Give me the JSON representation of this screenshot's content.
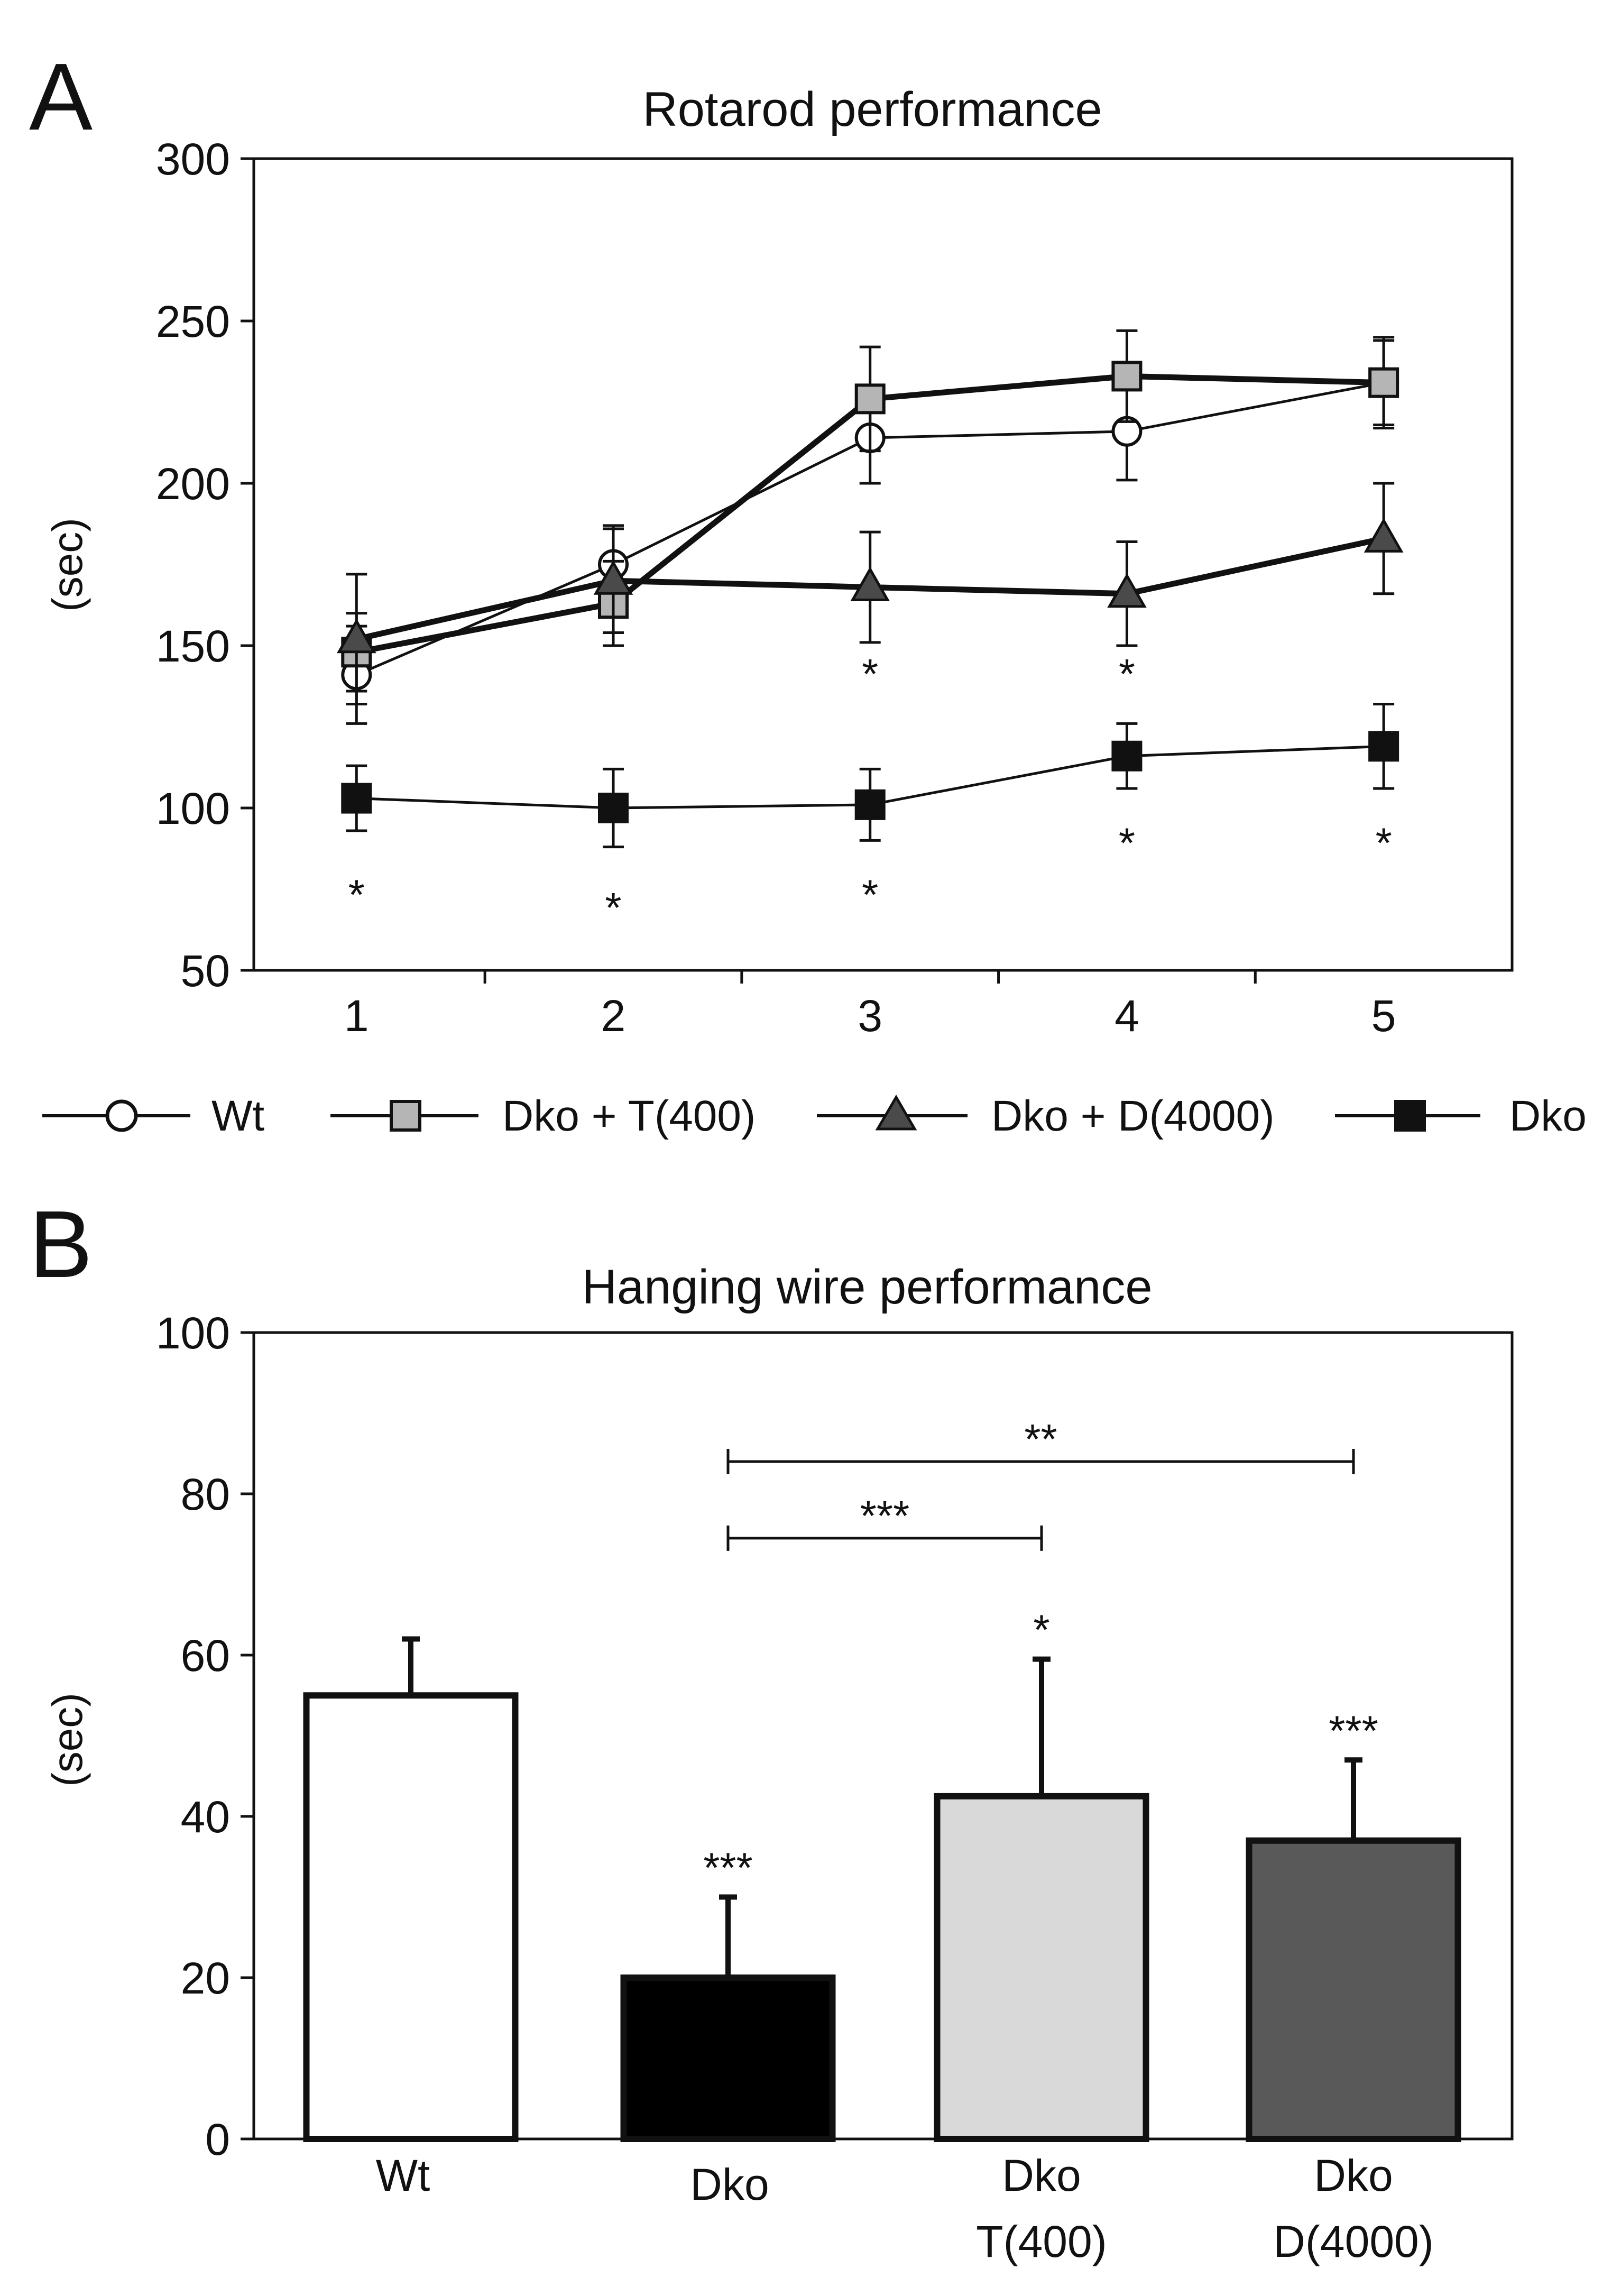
{
  "chart_data": [
    {
      "panel": "A",
      "type": "line",
      "title": "Rotarod performance",
      "xlabel": "",
      "ylabel": "(sec)",
      "xlim": [
        0.6,
        5.5
      ],
      "ylim": [
        50,
        300
      ],
      "x_ticks": [
        "1",
        "2",
        "3",
        "4",
        "5"
      ],
      "y_ticks": [
        "50",
        "100",
        "150",
        "200",
        "250",
        "300"
      ],
      "x": [
        1,
        2,
        3,
        4,
        5
      ],
      "series": [
        {
          "name": "Wt",
          "marker": "circle",
          "fill": "#ffffff",
          "line_weight": "thin",
          "values": [
            141,
            175,
            214,
            216,
            231
          ],
          "error": [
            15,
            12,
            14,
            15,
            14
          ]
        },
        {
          "name": "Dko + T(400)",
          "marker": "square",
          "fill": "#b5b5b5",
          "line_weight": "thick",
          "values": [
            148,
            163,
            226,
            233,
            231
          ],
          "error": [
            12,
            13,
            16,
            14,
            13
          ]
        },
        {
          "name": "Dko + D(4000)",
          "marker": "triangle",
          "fill": "#4a4a4a",
          "line_weight": "thick",
          "values": [
            152,
            170,
            168,
            166,
            183
          ],
          "error": [
            20,
            16,
            17,
            16,
            17
          ]
        },
        {
          "name": "Dko",
          "marker": "square",
          "fill": "#111111",
          "line_weight": "thin",
          "values": [
            103,
            100,
            101,
            116,
            119
          ],
          "error": [
            10,
            12,
            11,
            10,
            13
          ]
        }
      ],
      "annotations": [
        {
          "series": "Dko + D(4000)",
          "x": 3,
          "y": 143,
          "text": "*"
        },
        {
          "series": "Dko + D(4000)",
          "x": 4,
          "y": 143,
          "text": "*"
        },
        {
          "series": "Dko",
          "x": 1,
          "y": 75,
          "text": "*"
        },
        {
          "series": "Dko",
          "x": 2,
          "y": 71,
          "text": "*"
        },
        {
          "series": "Dko",
          "x": 3,
          "y": 75,
          "text": "*"
        },
        {
          "series": "Dko",
          "x": 4,
          "y": 91,
          "text": "*"
        },
        {
          "series": "Dko",
          "x": 5,
          "y": 91,
          "text": "*"
        }
      ]
    },
    {
      "panel": "B",
      "type": "bar",
      "title": "Hanging wire performance",
      "xlabel": "",
      "ylabel": "(sec)",
      "ylim": [
        0,
        100
      ],
      "y_ticks": [
        "0",
        "20",
        "40",
        "60",
        "80",
        "100"
      ],
      "categories": [
        {
          "lines": [
            "Wt"
          ],
          "fill": "#ffffff"
        },
        {
          "lines": [
            "Dko"
          ],
          "fill": "#000000"
        },
        {
          "lines": [
            "Dko",
            "T(400)"
          ],
          "fill": "#d9d9d9"
        },
        {
          "lines": [
            "Dko",
            "D(4000)"
          ],
          "fill": "#595959"
        }
      ],
      "values": [
        55,
        20,
        42.5,
        37
      ],
      "error": [
        7,
        10,
        17,
        10
      ],
      "bar_labels": [
        "",
        "***",
        "*",
        "***"
      ],
      "brackets": [
        {
          "from": 1,
          "to": 2,
          "y": 74.5,
          "label": "***"
        },
        {
          "from": 1,
          "to": 3,
          "y": 84,
          "label": "**"
        }
      ]
    }
  ]
}
